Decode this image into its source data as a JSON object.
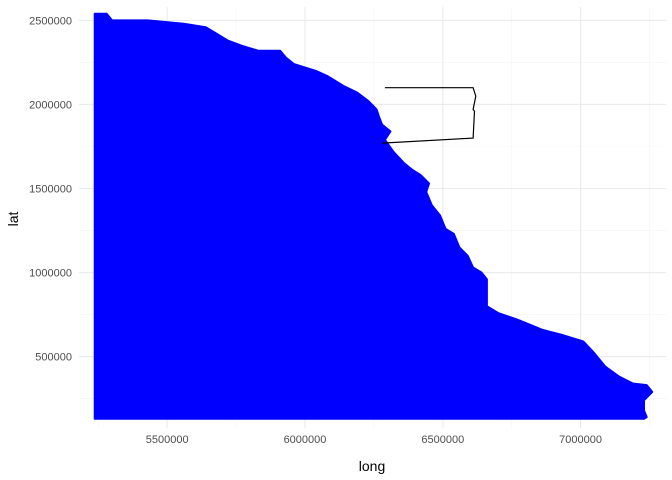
{
  "chart_data": {
    "type": "area",
    "xlabel": "long",
    "ylabel": "lat",
    "xlim": [
      5180000,
      7310000
    ],
    "ylim": [
      75000,
      2580000
    ],
    "x_ticks": [
      5500000,
      6000000,
      6500000,
      7000000
    ],
    "y_ticks": [
      500000,
      1000000,
      1500000,
      2000000,
      2500000
    ],
    "x_tick_labels": [
      "5500000",
      "6000000",
      "6500000",
      "7000000"
    ],
    "y_tick_labels": [
      "500000",
      "1000000",
      "1500000",
      "2000000",
      "2500000"
    ],
    "grid": true,
    "legend": "none",
    "colors": {
      "fill": "#0000ff",
      "outline": "#000000",
      "grid_major": "#ebebeb",
      "grid_minor": "#f5f5f5"
    },
    "series": [
      {
        "kind": "filled-polygon",
        "points": [
          [
            5237000,
            130000
          ],
          [
            5237000,
            2540000
          ],
          [
            5280000,
            2540000
          ],
          [
            5300000,
            2500000
          ],
          [
            5430000,
            2500000
          ],
          [
            5560000,
            2480000
          ],
          [
            5640000,
            2460000
          ],
          [
            5680000,
            2420000
          ],
          [
            5720000,
            2380000
          ],
          [
            5770000,
            2350000
          ],
          [
            5830000,
            2320000
          ],
          [
            5910000,
            2320000
          ],
          [
            5930000,
            2280000
          ],
          [
            5960000,
            2240000
          ],
          [
            6040000,
            2200000
          ],
          [
            6080000,
            2170000
          ],
          [
            6140000,
            2110000
          ],
          [
            6190000,
            2070000
          ],
          [
            6230000,
            2020000
          ],
          [
            6260000,
            1970000
          ],
          [
            6270000,
            1920000
          ],
          [
            6280000,
            1880000
          ],
          [
            6310000,
            1840000
          ],
          [
            6290000,
            1790000
          ],
          [
            6320000,
            1720000
          ],
          [
            6360000,
            1650000
          ],
          [
            6390000,
            1610000
          ],
          [
            6420000,
            1580000
          ],
          [
            6450000,
            1530000
          ],
          [
            6440000,
            1480000
          ],
          [
            6460000,
            1400000
          ],
          [
            6490000,
            1340000
          ],
          [
            6510000,
            1260000
          ],
          [
            6540000,
            1230000
          ],
          [
            6560000,
            1150000
          ],
          [
            6590000,
            1100000
          ],
          [
            6610000,
            1030000
          ],
          [
            6640000,
            1000000
          ],
          [
            6660000,
            960000
          ],
          [
            6660000,
            800000
          ],
          [
            6700000,
            760000
          ],
          [
            6770000,
            720000
          ],
          [
            6860000,
            660000
          ],
          [
            6930000,
            630000
          ],
          [
            7010000,
            590000
          ],
          [
            7050000,
            520000
          ],
          [
            7090000,
            440000
          ],
          [
            7140000,
            380000
          ],
          [
            7190000,
            340000
          ],
          [
            7240000,
            330000
          ],
          [
            7260000,
            290000
          ],
          [
            7230000,
            240000
          ],
          [
            7230000,
            180000
          ],
          [
            7240000,
            140000
          ],
          [
            7230000,
            130000
          ]
        ]
      },
      {
        "kind": "outline-path",
        "points": [
          [
            6290000,
            2100000
          ],
          [
            6610000,
            2100000
          ],
          [
            6620000,
            2050000
          ],
          [
            6610000,
            1970000
          ],
          [
            6615000,
            1960000
          ],
          [
            6610000,
            1800000
          ],
          [
            6280000,
            1770000
          ]
        ]
      }
    ]
  }
}
